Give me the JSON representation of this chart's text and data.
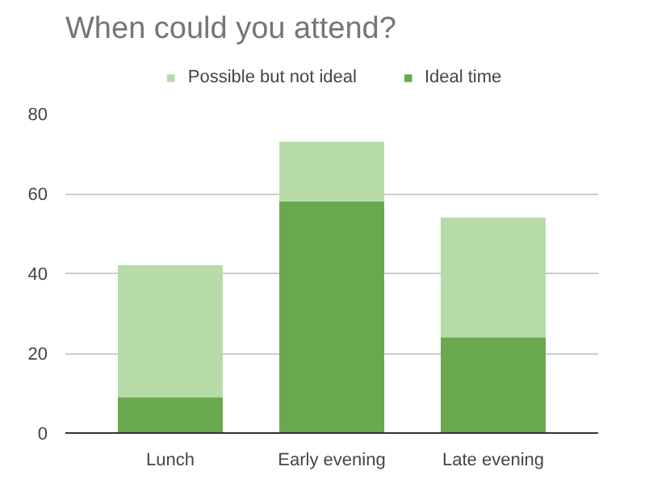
{
  "chart_data": {
    "type": "bar",
    "title": "When could you attend?",
    "categories": [
      "Lunch",
      "Early evening",
      "Late evening"
    ],
    "stacked": true,
    "series": [
      {
        "name": "Ideal time",
        "color": "#6aa84f",
        "values": [
          9,
          58,
          24
        ]
      },
      {
        "name": "Possible but not ideal",
        "color": "#b7dba8",
        "values": [
          33,
          15,
          30
        ]
      }
    ],
    "ylim": [
      0,
      80
    ],
    "yticks": [
      0,
      20,
      40,
      60,
      80
    ],
    "grid": "y",
    "legend": "top"
  }
}
